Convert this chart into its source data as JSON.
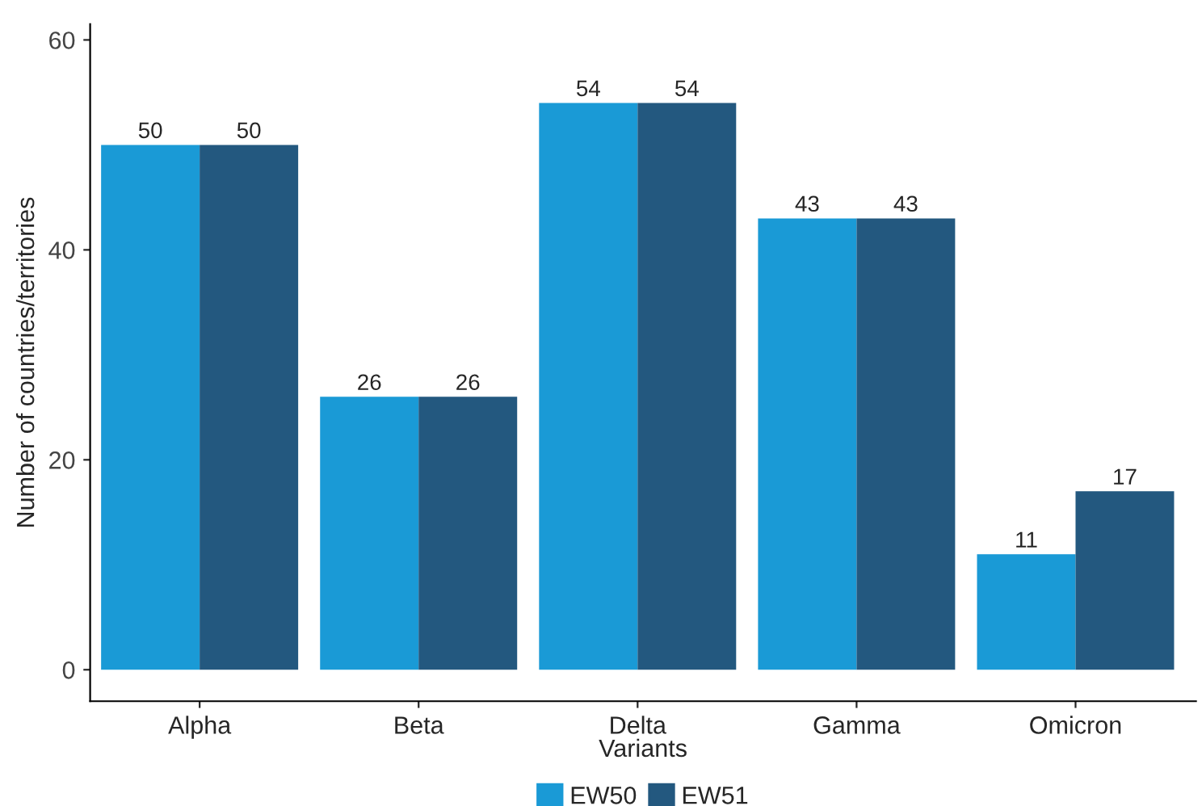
{
  "chart_data": {
    "type": "bar",
    "xlabel": "Variants",
    "ylabel": "Number of countries/territories",
    "categories": [
      "Alpha",
      "Beta",
      "Delta",
      "Gamma",
      "Omicron"
    ],
    "series": [
      {
        "name": "EW50",
        "color": "#1a9ad6",
        "values": [
          50,
          26,
          54,
          43,
          11
        ]
      },
      {
        "name": "EW51",
        "color": "#23587f",
        "values": [
          50,
          26,
          54,
          43,
          17
        ]
      }
    ],
    "ylim": [
      -3,
      61.5
    ],
    "yticks": [
      0,
      20,
      40,
      60
    ],
    "data_labels": true,
    "legend": "bottom",
    "grid": false
  }
}
